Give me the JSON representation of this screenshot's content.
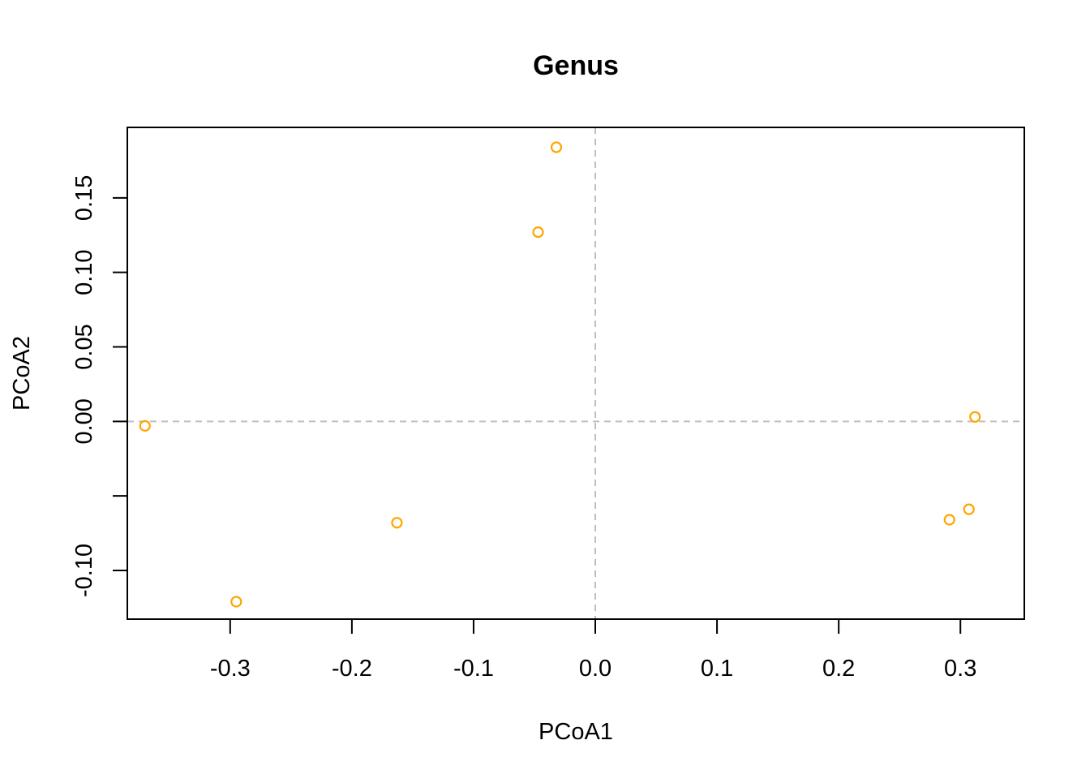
{
  "chart_data": {
    "type": "scatter",
    "title": "Genus",
    "xlabel": "PCoA1",
    "ylabel": "PCoA2",
    "xlim": [
      -0.3845,
      0.3525
    ],
    "ylim": [
      -0.1327,
      0.1973
    ],
    "x_ticks": [
      -0.3,
      -0.2,
      -0.1,
      0.0,
      0.1,
      0.2,
      0.3
    ],
    "x_tick_labels": [
      "-0.3",
      "-0.2",
      "-0.1",
      "0.0",
      "0.1",
      "0.2",
      "0.3"
    ],
    "y_ticks": [
      -0.1,
      -0.05,
      0.0,
      0.05,
      0.1,
      0.15
    ],
    "y_tick_labels": [
      "-0.10",
      "",
      "0.00",
      "0.05",
      "0.10",
      "0.15"
    ],
    "reference_lines": {
      "x": 0.0,
      "y": 0.0,
      "style": "dashed",
      "color": "#bebebe"
    },
    "point_color": "#FFA500",
    "marker": "open-circle",
    "grid": false,
    "legend": "none",
    "points": [
      {
        "x": -0.37,
        "y": -0.003
      },
      {
        "x": -0.295,
        "y": -0.121
      },
      {
        "x": -0.163,
        "y": -0.068
      },
      {
        "x": -0.047,
        "y": 0.127
      },
      {
        "x": -0.032,
        "y": 0.184
      },
      {
        "x": 0.291,
        "y": -0.066
      },
      {
        "x": 0.307,
        "y": -0.059
      },
      {
        "x": 0.312,
        "y": 0.003
      }
    ]
  }
}
